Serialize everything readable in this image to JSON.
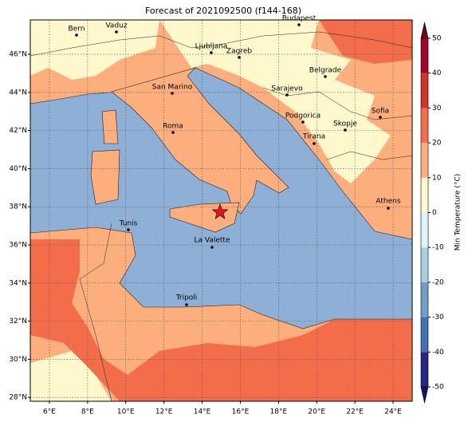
{
  "chart_data": {
    "type": "map",
    "title": "Forecast of 2021092500 (f144-168)",
    "xlim": [
      5,
      25
    ],
    "ylim": [
      27.8,
      47.8
    ],
    "xticks": [
      {
        "value": 6,
        "label": "6°E"
      },
      {
        "value": 8,
        "label": "8°E"
      },
      {
        "value": 10,
        "label": "10°E"
      },
      {
        "value": 12,
        "label": "12°E"
      },
      {
        "value": 14,
        "label": "14°E"
      },
      {
        "value": 16,
        "label": "16°E"
      },
      {
        "value": 18,
        "label": "18°E"
      },
      {
        "value": 20,
        "label": "20°E"
      },
      {
        "value": 22,
        "label": "22°E"
      },
      {
        "value": 24,
        "label": "24°E"
      }
    ],
    "yticks": [
      {
        "value": 28,
        "label": "28°N"
      },
      {
        "value": 30,
        "label": "30°N"
      },
      {
        "value": 32,
        "label": "32°N"
      },
      {
        "value": 34,
        "label": "34°N"
      },
      {
        "value": 36,
        "label": "36°N"
      },
      {
        "value": 38,
        "label": "38°N"
      },
      {
        "value": 40,
        "label": "40°N"
      },
      {
        "value": 42,
        "label": "42°N"
      },
      {
        "value": 44,
        "label": "44°N"
      },
      {
        "value": 46,
        "label": "46°N"
      }
    ],
    "grid": true,
    "cities": [
      "Bern",
      "Vaduz",
      "Budapest",
      "Ljubljana",
      "Zagreb",
      "Belgrade",
      "San Marino",
      "Sarajevo",
      "Sofia",
      "Podgorica",
      "Skopje",
      "Roma",
      "Tirana",
      "Athens",
      "Tunis",
      "La Valette",
      "Tripoli"
    ],
    "colorbar": {
      "label": "Min Temperature (°C)",
      "ticks": [
        -50,
        -40,
        -30,
        -20,
        -10,
        0,
        10,
        20,
        30,
        40,
        50
      ],
      "colors": [
        "#262686",
        "#4372b2",
        "#6f9fca",
        "#a8cee3",
        "#e0f3f8",
        "#fef8cc",
        "#fdae7d",
        "#f36d4a",
        "#d43227",
        "#a50026"
      ],
      "under_color": "#14146e",
      "over_color": "#7a0020"
    }
  }
}
